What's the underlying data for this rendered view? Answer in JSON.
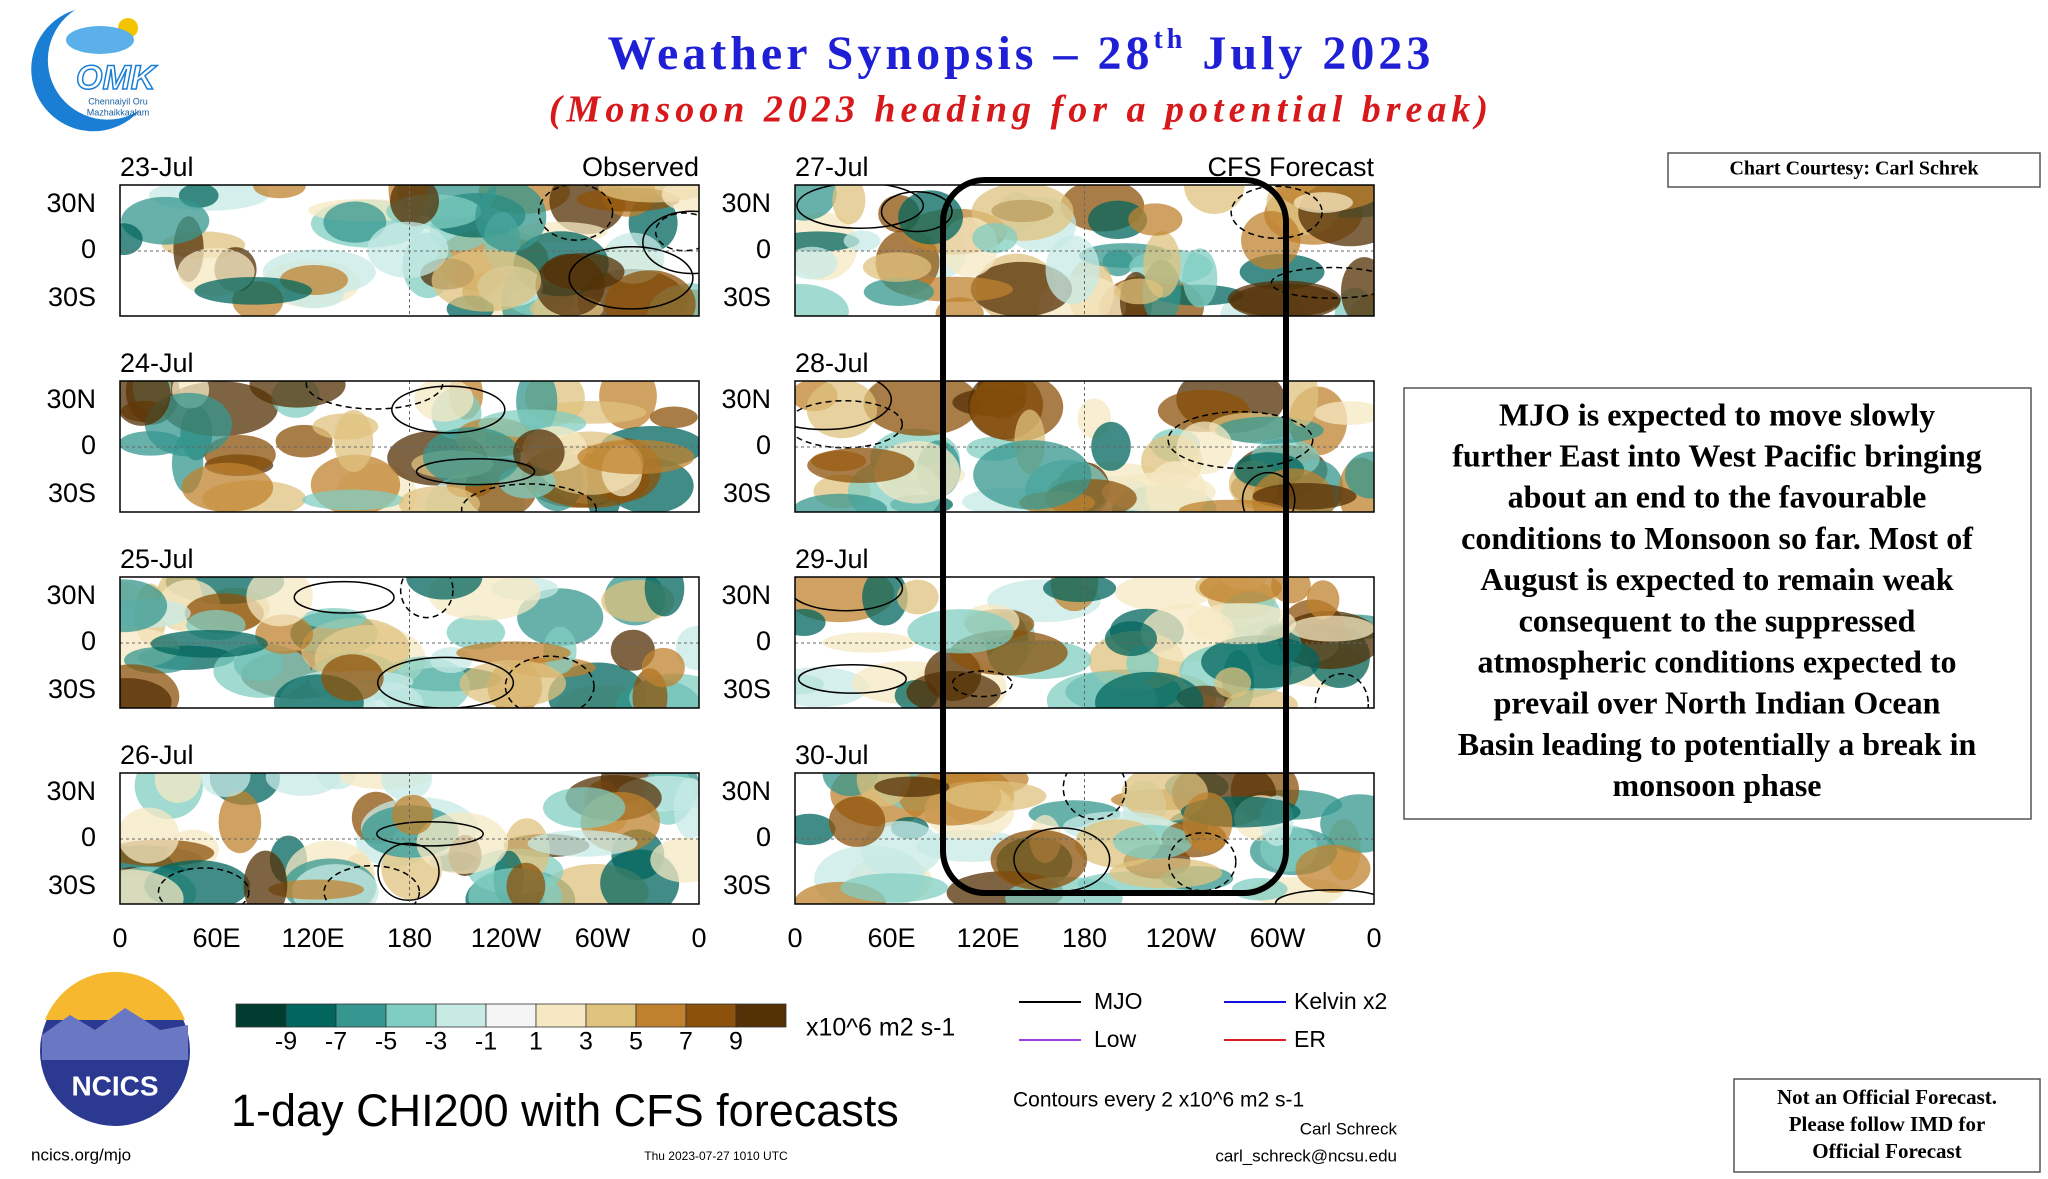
{
  "header": {
    "title": "Weather Synopsis – 28",
    "title_sup": "th",
    "title_end": " July 2023",
    "subtitle": "(Monsoon 2023 heading for a potential break)"
  },
  "logo": {
    "name": "OMK",
    "tagline": [
      "Chennaiyil Oru",
      "Mazhaikkaalam"
    ]
  },
  "credit": "Chart Courtesy: Carl Schrek",
  "panels": {
    "observed_label": "Observed",
    "forecast_label": "CFS Forecast",
    "observed_dates": [
      "23-Jul",
      "24-Jul",
      "25-Jul",
      "26-Jul"
    ],
    "forecast_dates": [
      "27-Jul",
      "28-Jul",
      "29-Jul",
      "30-Jul"
    ],
    "lat_labels": [
      "30N",
      "0",
      "30S"
    ],
    "lon_labels": [
      "0",
      "60E",
      "120E",
      "180",
      "120W",
      "60W",
      "0"
    ]
  },
  "colorbar": {
    "labels": [
      -9,
      -7,
      -5,
      -3,
      -1,
      1,
      3,
      5,
      7,
      9
    ],
    "unit": "x10^6 m2 s-1"
  },
  "legend": {
    "items": [
      "MJO",
      "Kelvin x2",
      "Low",
      "ER"
    ]
  },
  "footer": {
    "product": "1-day CHI200 with CFS forecasts",
    "org": "NCICS",
    "url": "ncics.org/mjo",
    "timestamp": "Thu 2023-07-27 1010 UTC",
    "contours": "Contours every 2 x10^6 m2 s-1",
    "author": "Carl Schreck",
    "email": "carl_schreck@ncsu.edu"
  },
  "summary": {
    "lines": [
      "MJO is expected to move slowly",
      "further East into West Pacific bringing",
      "about an end to the favourable",
      "conditions to Monsoon so far. Most of",
      "August is expected to remain weak",
      "consequent to the suppressed",
      "atmospheric conditions expected to",
      "prevail over North Indian Ocean",
      "Basin leading to potentially a break in",
      "monsoon phase"
    ]
  },
  "disclaimer": {
    "lines": [
      "Not an Official Forecast.",
      "Please follow IMD for",
      "Official Forecast"
    ]
  }
}
